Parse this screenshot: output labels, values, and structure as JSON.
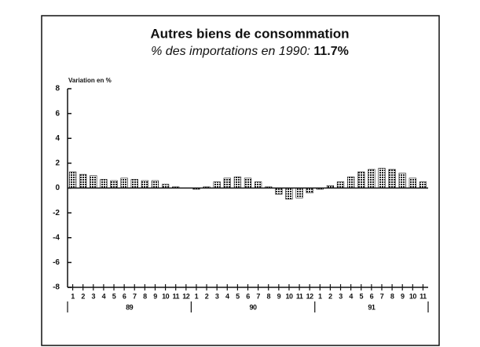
{
  "chart_data": {
    "type": "bar",
    "title": "Autres biens de consommation",
    "subtitle": "% des importations en 1990:",
    "subtitle_value": "11.7%",
    "ylabel": "Variation en %",
    "categories": [
      "1",
      "2",
      "3",
      "4",
      "5",
      "6",
      "7",
      "8",
      "9",
      "10",
      "11",
      "12",
      "1",
      "2",
      "3",
      "4",
      "5",
      "6",
      "7",
      "8",
      "9",
      "10",
      "11",
      "12",
      "1",
      "2",
      "3",
      "4",
      "5",
      "6",
      "7",
      "8",
      "9",
      "10",
      "11"
    ],
    "groups": [
      "89",
      "90",
      "91"
    ],
    "values": [
      1.3,
      1.1,
      1.0,
      0.7,
      0.6,
      0.8,
      0.7,
      0.6,
      0.6,
      0.3,
      0.1,
      0.0,
      -0.1,
      0.1,
      0.5,
      0.8,
      0.9,
      0.8,
      0.5,
      0.1,
      -0.5,
      -0.9,
      -0.8,
      -0.4,
      -0.1,
      0.2,
      0.5,
      0.9,
      1.3,
      1.5,
      1.6,
      1.5,
      1.2,
      0.8,
      0.5
    ],
    "color": "#222222",
    "ylim": [
      -8,
      8
    ],
    "yticks": [
      -8,
      -6,
      -4,
      -2,
      0,
      2,
      4,
      6,
      8
    ]
  }
}
